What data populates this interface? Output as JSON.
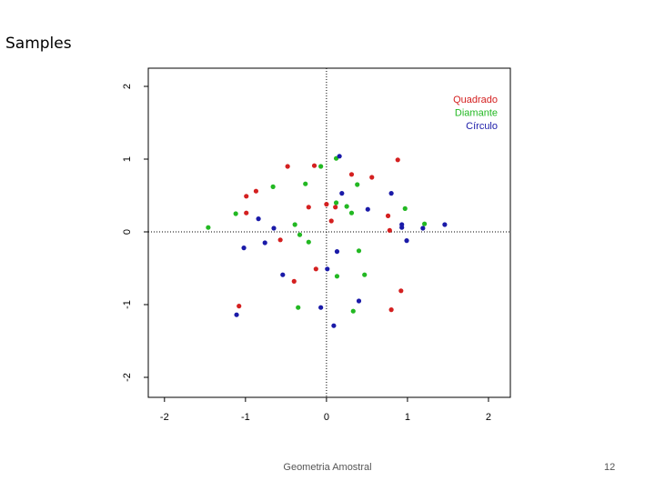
{
  "slide": {
    "title": "Samples",
    "footer": "Geometria Amostral",
    "page_number": 12
  },
  "chart_data": {
    "type": "scatter",
    "xlim": [
      -2.2,
      2.27
    ],
    "ylim": [
      -2.275,
      2.25
    ],
    "xticks": [
      -2,
      -1,
      0,
      1,
      2
    ],
    "yticks": [
      -2,
      -1,
      0,
      1,
      2
    ],
    "zero_lines": true,
    "legend": "top right",
    "series": [
      {
        "name": "Quadrado",
        "color": "#d42020",
        "x": [
          -0.48,
          -0.15,
          0.31,
          0.56,
          0.88,
          -0.87,
          -0.99,
          0,
          -0.22,
          0.11,
          -0.99,
          0.76,
          0.06,
          0.78,
          -0.57,
          -0.13,
          -0.4,
          0.92,
          -1.08,
          0.8
        ],
        "values": [
          0.9,
          0.91,
          0.79,
          0.75,
          0.99,
          0.56,
          0.49,
          0.38,
          0.34,
          0.34,
          0.26,
          0.22,
          0.15,
          0.02,
          -0.11,
          -0.51,
          -0.68,
          -0.81,
          -1.02,
          -1.07
        ]
      },
      {
        "name": "Diamante",
        "color": "#22b822",
        "x": [
          -0.07,
          0.12,
          -0.26,
          -0.66,
          0.38,
          0.12,
          0.25,
          0.31,
          -1.12,
          0.97,
          -1.46,
          -0.39,
          1.21,
          -0.33,
          -0.22,
          0.4,
          0.13,
          0.47,
          -0.35,
          0.33
        ],
        "values": [
          0.9,
          1.01,
          0.66,
          0.62,
          0.65,
          0.4,
          0.35,
          0.26,
          0.25,
          0.32,
          0.06,
          0.1,
          0.11,
          -0.04,
          -0.14,
          -0.26,
          -0.61,
          -0.59,
          -1.04,
          -1.09
        ]
      },
      {
        "name": "Círculo",
        "color": "#1a1aa8",
        "x": [
          0.16,
          0.19,
          0.8,
          0.51,
          -0.84,
          -0.65,
          0.93,
          0.93,
          1.19,
          1.46,
          -0.76,
          -1.02,
          0.99,
          0.13,
          -0.54,
          0.01,
          0.4,
          -0.07,
          -1.11,
          0.09
        ],
        "values": [
          1.04,
          0.53,
          0.53,
          0.31,
          0.18,
          0.05,
          0.1,
          0.06,
          0.05,
          0.1,
          -0.15,
          -0.22,
          -0.12,
          -0.27,
          -0.59,
          -0.51,
          -0.95,
          -1.04,
          -1.14,
          -1.29
        ]
      }
    ]
  }
}
